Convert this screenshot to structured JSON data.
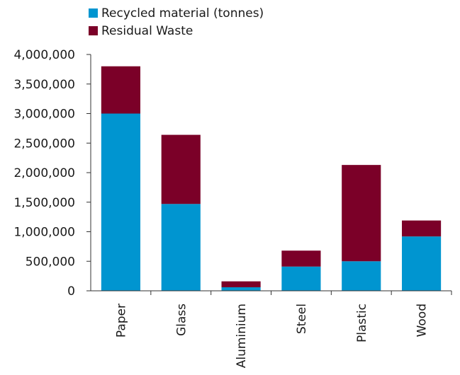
{
  "chart_data": {
    "type": "bar",
    "stacked": true,
    "categories": [
      "Paper",
      "Glass",
      "Aluminium",
      "Steel",
      "Plastic",
      "Wood"
    ],
    "series": [
      {
        "name": "Recycled material (tonnes)",
        "color": "#0095d0",
        "values": [
          3000000,
          1470000,
          60000,
          410000,
          500000,
          920000
        ]
      },
      {
        "name": "Residual Waste",
        "color": "#7b0028",
        "values": [
          800000,
          1170000,
          100000,
          270000,
          1630000,
          270000
        ]
      }
    ],
    "yticks": [
      "0",
      "500,000",
      "1,000,000",
      "1,500,000",
      "2,000,000",
      "2,500,000",
      "3,000,000",
      "3,500,000",
      "4,000,000"
    ],
    "ylim": [
      0,
      4000000
    ],
    "grid": false,
    "legend_position": "top"
  }
}
